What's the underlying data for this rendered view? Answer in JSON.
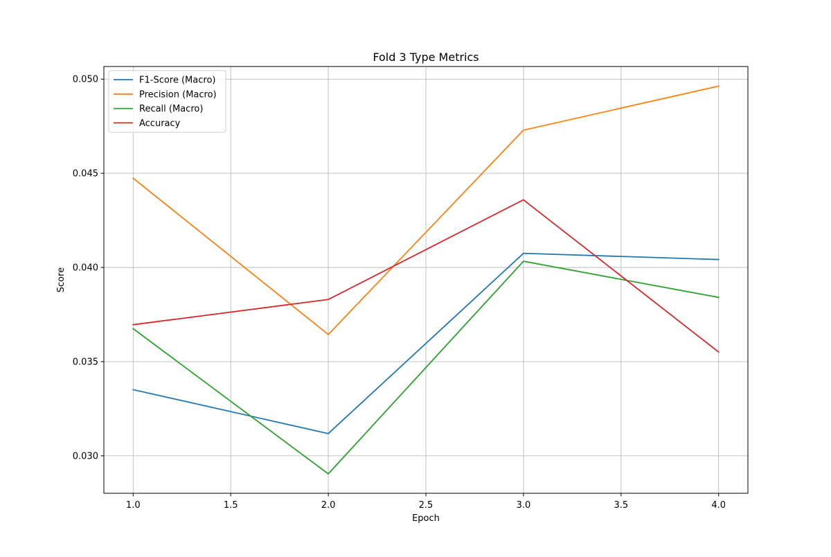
{
  "chart_data": {
    "type": "line",
    "title": "Fold 3 Type Metrics",
    "xlabel": "Epoch",
    "ylabel": "Score",
    "x": [
      1.0,
      2.0,
      3.0,
      4.0
    ],
    "xlim": [
      0.85,
      4.15
    ],
    "ylim": [
      0.02801,
      0.05067
    ],
    "xticks": [
      1.0,
      1.5,
      2.0,
      2.5,
      3.0,
      3.5,
      4.0
    ],
    "xtick_labels": [
      "1.0",
      "1.5",
      "2.0",
      "2.5",
      "3.0",
      "3.5",
      "4.0"
    ],
    "yticks": [
      0.03,
      0.035,
      0.04,
      0.045,
      0.05
    ],
    "ytick_labels": [
      "0.030",
      "0.035",
      "0.040",
      "0.045",
      "0.050"
    ],
    "grid": true,
    "legend_position": "top-left",
    "series": [
      {
        "name": "F1-Score (Macro)",
        "color": "#1f77b4",
        "values": [
          0.03351,
          0.03118,
          0.04075,
          0.04042
        ]
      },
      {
        "name": "Precision (Macro)",
        "color": "#ff7f0e",
        "values": [
          0.04474,
          0.03644,
          0.04729,
          0.04963
        ]
      },
      {
        "name": "Recall (Macro)",
        "color": "#2ca02c",
        "values": [
          0.03675,
          0.02904,
          0.04033,
          0.03841
        ]
      },
      {
        "name": "Accuracy",
        "color": "#d62728",
        "values": [
          0.03696,
          0.0383,
          0.04359,
          0.03551
        ]
      }
    ]
  }
}
